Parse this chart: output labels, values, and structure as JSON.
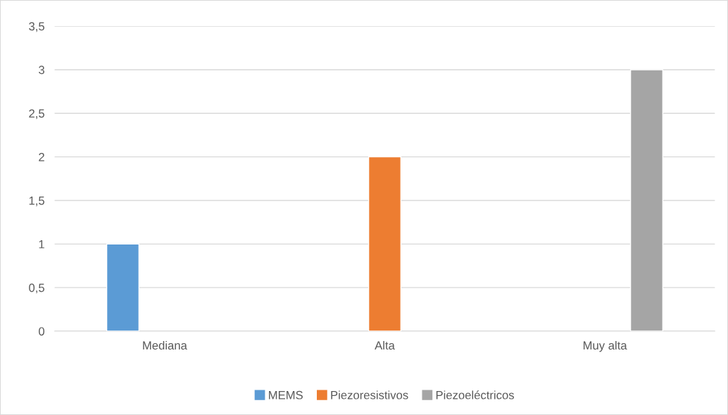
{
  "chart_data": {
    "type": "bar",
    "categories": [
      "Mediana",
      "Alta",
      "Muy alta"
    ],
    "series": [
      {
        "name": "MEMS",
        "color": "#5b9bd5",
        "values": [
          1,
          null,
          null
        ]
      },
      {
        "name": "Piezoresistivos",
        "color": "#ed7d31",
        "values": [
          null,
          2,
          null
        ]
      },
      {
        "name": "Piezoeléctricos",
        "color": "#a5a5a5",
        "values": [
          null,
          null,
          3
        ]
      }
    ],
    "ylim": [
      0,
      3.5
    ],
    "yticks": [
      0,
      {
        "value": 0.5,
        "label": "0,5"
      },
      1,
      {
        "value": 1.5,
        "label": "1,5"
      },
      2,
      {
        "value": 2.5,
        "label": "2,5"
      },
      3,
      {
        "value": 3.5,
        "label": "3,5"
      }
    ],
    "grid": "y",
    "legend": "bottom"
  }
}
